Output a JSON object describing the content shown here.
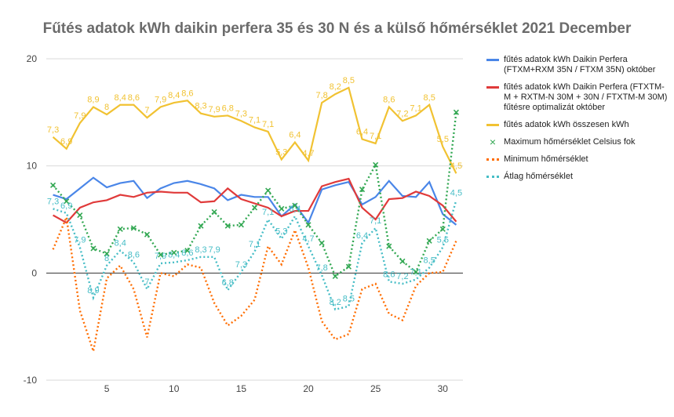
{
  "chart_data": {
    "type": "line",
    "title": "Fűtés adatok kWh  daikin perfera 35 és 30 N  és a külső hőmérséklet 2021 December",
    "xlabel": "",
    "ylabel": "",
    "xlim": [
      0.5,
      31.5
    ],
    "ylim": [
      -10,
      20
    ],
    "x_ticks": [
      5,
      10,
      15,
      20,
      25,
      30
    ],
    "y_ticks": [
      -10,
      0,
      10,
      20
    ],
    "grid": "horizontal",
    "legend_position": "right",
    "x": [
      1,
      2,
      3,
      4,
      5,
      6,
      7,
      8,
      9,
      10,
      11,
      12,
      13,
      14,
      15,
      16,
      17,
      18,
      19,
      20,
      21,
      22,
      23,
      24,
      25,
      26,
      27,
      28,
      29,
      30,
      31
    ],
    "series": [
      {
        "name": "fűtés adatok kWh Daikin Perfera (FTXM+RXM 35N / FTXM 35N) október",
        "color": "#4a86e8",
        "style": "solid",
        "labels": false,
        "values": [
          7.3,
          6.9,
          7.9,
          8.9,
          8.0,
          8.4,
          8.6,
          7.0,
          7.9,
          8.4,
          8.6,
          8.3,
          7.9,
          6.8,
          7.3,
          7.1,
          7.1,
          5.3,
          6.4,
          4.7,
          7.8,
          8.2,
          8.5,
          6.4,
          7.1,
          8.6,
          7.2,
          7.1,
          8.5,
          5.5,
          4.5
        ]
      },
      {
        "name": "fűtés adatok kWh  Daikin Perfera (FTXTM-M + RXTM-N 30M + 30N / FTXTM-M 30M) fűtésre optimalizát október",
        "color": "#e03a3a",
        "style": "solid",
        "labels": false,
        "values": [
          5.4,
          4.7,
          6.1,
          6.6,
          6.8,
          7.3,
          7.1,
          7.5,
          7.6,
          7.5,
          7.5,
          6.6,
          6.7,
          7.9,
          6.9,
          6.5,
          6.1,
          5.3,
          5.8,
          5.8,
          8.1,
          8.5,
          8.8,
          6.1,
          5.0,
          6.9,
          7.0,
          7.6,
          7.2,
          6.3,
          4.8
        ]
      },
      {
        "name": "fűtés adatok kWh összesen  kWh",
        "color": "#f1c232",
        "style": "solid",
        "labels": true,
        "values": [
          12.7,
          11.6,
          14.0,
          15.5,
          14.8,
          15.7,
          15.7,
          14.5,
          15.5,
          15.9,
          16.1,
          14.9,
          14.6,
          14.7,
          14.2,
          13.6,
          13.2,
          10.6,
          12.2,
          10.5,
          15.9,
          16.7,
          17.3,
          12.5,
          12.1,
          15.5,
          14.2,
          14.7,
          15.7,
          11.8,
          9.3
        ]
      },
      {
        "name": "Maximum hőmérséklet Celsius fok",
        "color": "#33a853",
        "style": "dotted-markers",
        "labels": false,
        "values": [
          8.2,
          6.7,
          5.4,
          2.3,
          1.8,
          4.1,
          4.2,
          3.6,
          1.7,
          1.9,
          2.1,
          4.4,
          5.7,
          4.4,
          4.5,
          6.1,
          7.7,
          6.0,
          6.3,
          4.5,
          2.8,
          -0.3,
          0.6,
          7.8,
          10.1,
          2.5,
          1.1,
          0.1,
          3.0,
          4.1,
          15.0
        ]
      },
      {
        "name": "Minimum hőmérséklet",
        "color": "#ff6d01",
        "style": "dotted",
        "labels": false,
        "values": [
          2.2,
          5.2,
          -3.5,
          -7.3,
          -0.5,
          0.7,
          -1.5,
          -6.0,
          0.0,
          -0.3,
          0.8,
          0.5,
          -2.8,
          -4.9,
          -4.0,
          -2.5,
          2.5,
          0.8,
          4.0,
          0.5,
          -4.5,
          -6.2,
          -5.7,
          -1.5,
          -1.0,
          -3.8,
          -4.4,
          -1.2,
          0.0,
          0.1,
          3.0
        ]
      },
      {
        "name": "Átlag hőmérséklet",
        "color": "#46bdc6",
        "style": "dotted",
        "labels": true,
        "values": [
          6.0,
          5.6,
          2.4,
          -2.3,
          0.7,
          2.1,
          1.0,
          -1.5,
          0.9,
          1.0,
          1.2,
          1.5,
          1.5,
          -1.6,
          0.1,
          2.0,
          5.0,
          3.2,
          5.3,
          2.5,
          -0.2,
          -3.4,
          -3.1,
          2.8,
          4.2,
          -0.8,
          -1.0,
          -0.6,
          0.5,
          2.4,
          6.8
        ]
      }
    ]
  }
}
